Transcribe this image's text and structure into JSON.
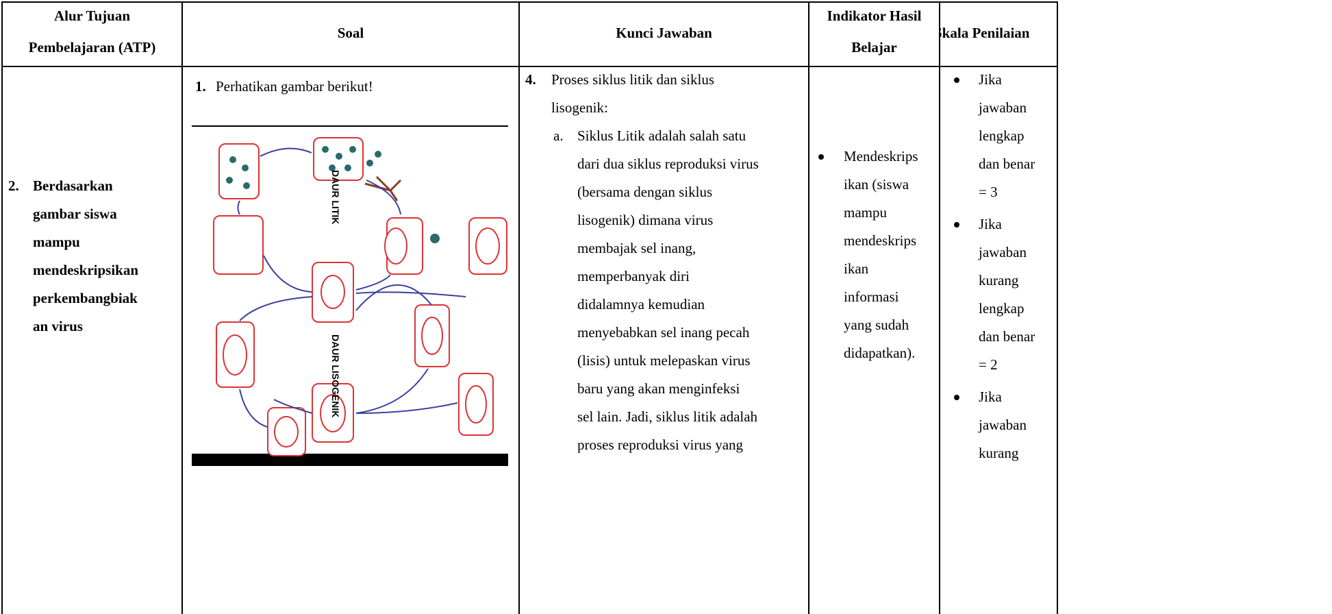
{
  "table": {
    "headers": [
      [
        "Alur Tujuan",
        "Pembelajaran (ATP)"
      ],
      [
        "Soal"
      ],
      [
        "Kunci Jawaban"
      ],
      [
        "Indikator Hasil",
        "Belajar"
      ],
      [
        "Skala Penilaian"
      ]
    ],
    "row": {
      "atp": {
        "number": "2.",
        "lines": [
          "Berdasarkan",
          "gambar siswa",
          "mampu",
          "mendeskripsikan",
          "perkembangbiak",
          "an virus"
        ]
      },
      "soal": {
        "number": "1.",
        "text": "Perhatikan gambar berikut!",
        "figure": {
          "labels": [
            "DAUR LITIK",
            "DAUR LISOGENIK"
          ]
        }
      },
      "kunci": {
        "number": "4.",
        "intro_lines": [
          "Proses siklus litik dan siklus",
          "lisogenik:"
        ],
        "item": {
          "marker": "a.",
          "lines": [
            "Siklus Litik adalah salah satu",
            "dari dua siklus reproduksi virus",
            "(bersama dengan siklus",
            "lisogenik) dimana virus",
            "membajak sel inang,",
            "memperbanyak diri",
            "didalamnya kemudian",
            "menyebabkan sel inang pecah",
            "(lisis) untuk melepaskan virus",
            "baru yang akan menginfeksi",
            "sel lain. Jadi, siklus litik adalah",
            "proses reproduksi virus yang"
          ]
        }
      },
      "indikator": {
        "lines": [
          "Mendeskrips",
          "ikan (siswa",
          "mampu",
          "mendeskrips",
          "ikan",
          "informasi",
          "yang sudah",
          "didapatkan)."
        ]
      },
      "skala": {
        "items": [
          [
            "Jika",
            "jawaban",
            "lengkap",
            "dan benar",
            "= 3"
          ],
          [
            "Jika",
            "jawaban",
            "kurang",
            "lengkap",
            "dan benar",
            "= 2"
          ],
          [
            "Jika",
            "jawaban",
            "kurang"
          ]
        ]
      }
    }
  }
}
